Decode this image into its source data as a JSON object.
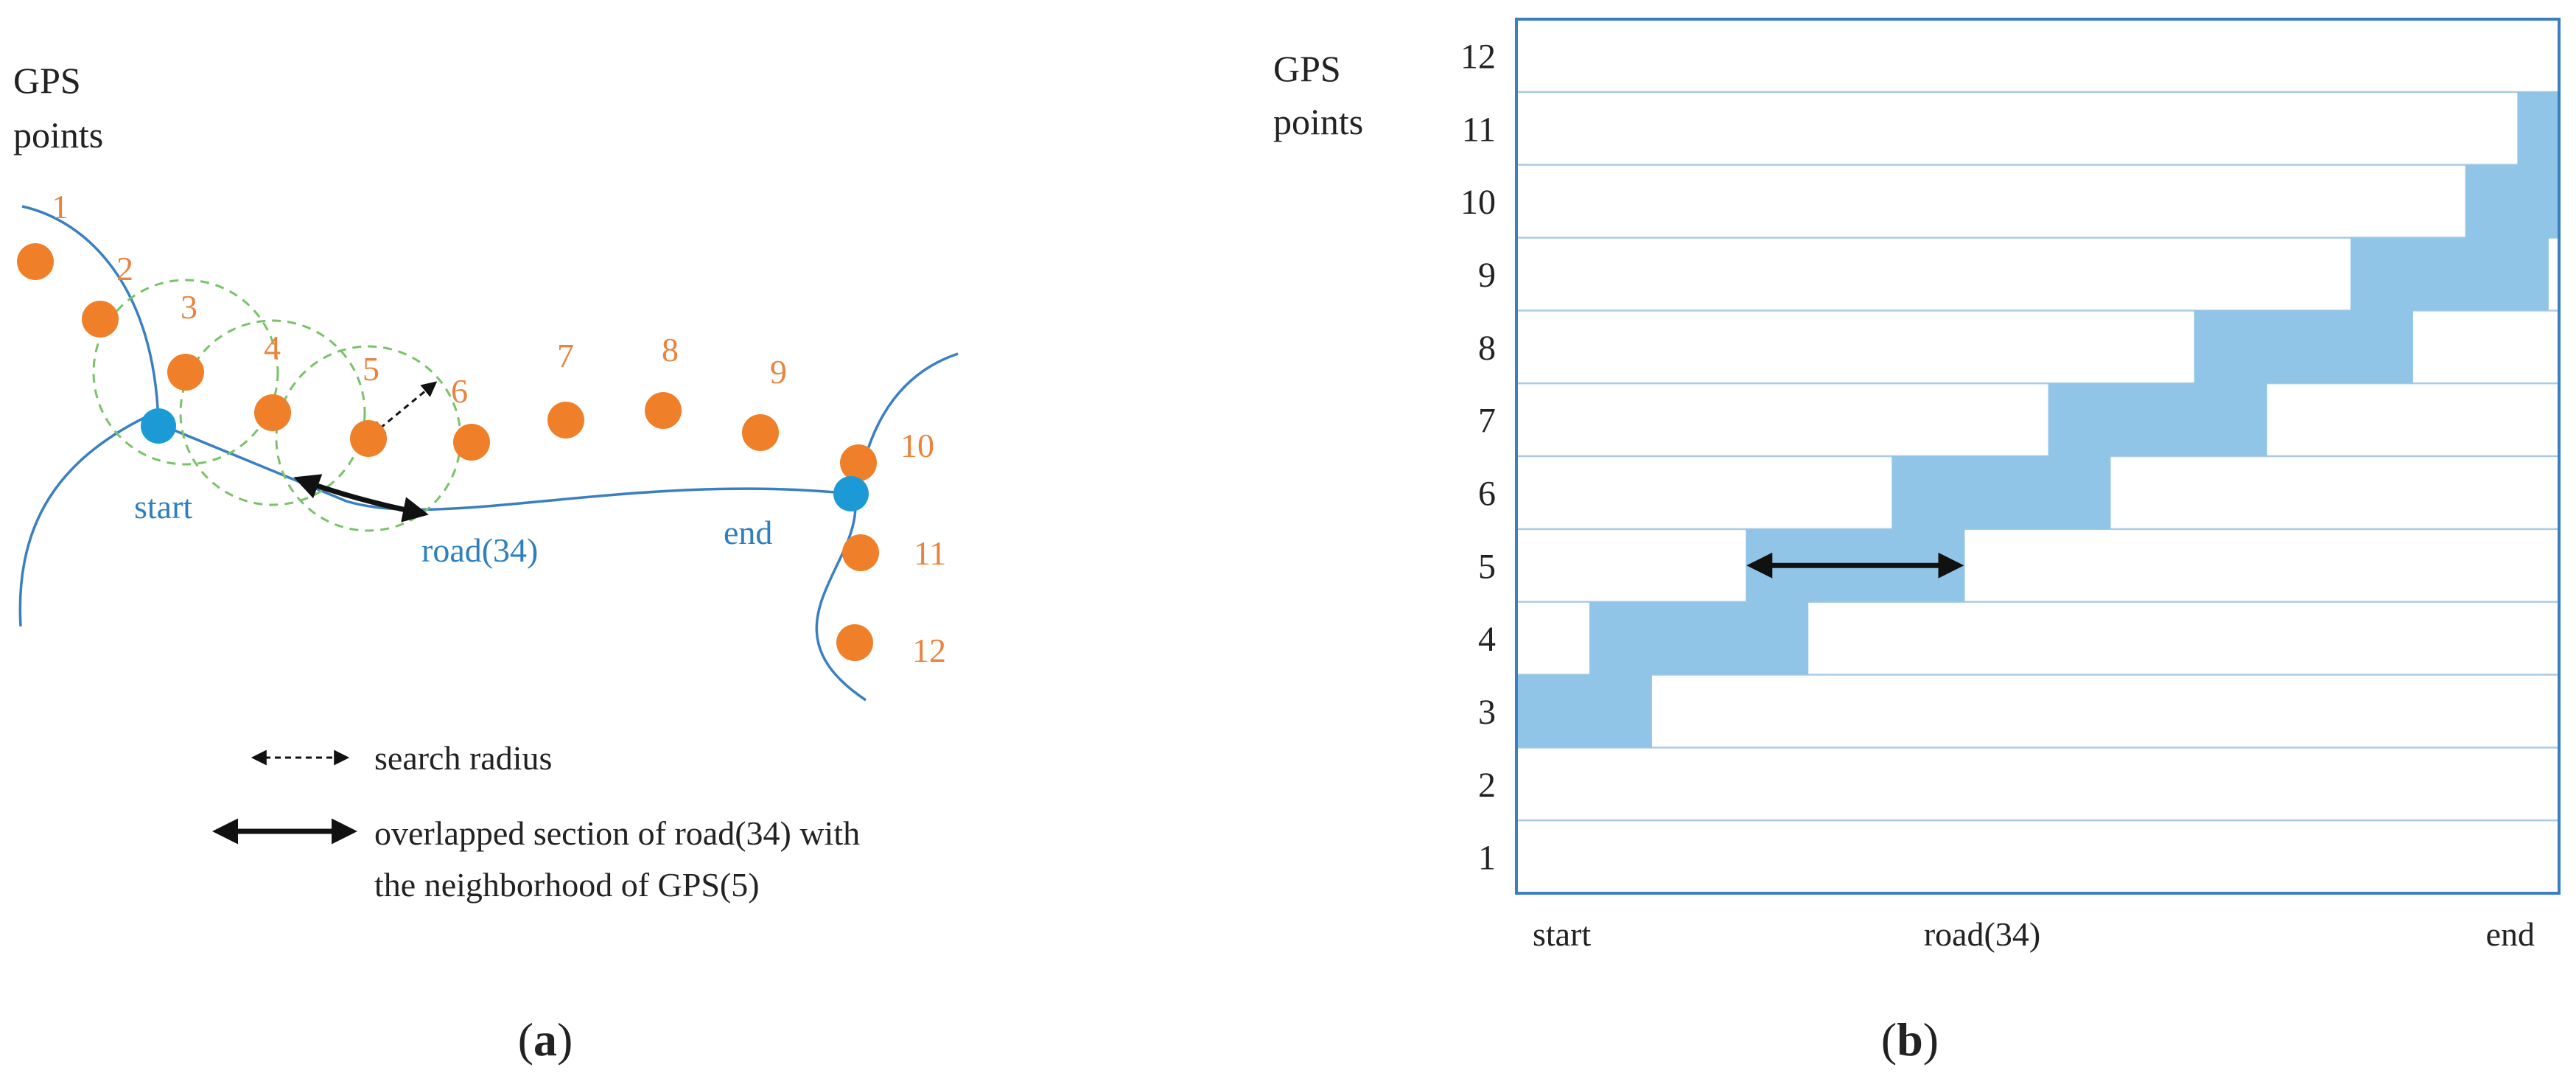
{
  "colors": {
    "road": "#3a7fc1",
    "gps_point": "#f07f2a",
    "road_endpoint": "#1b9ad6",
    "label_orange": "#e8843e",
    "label_blue": "#2e7fbf",
    "search_circle": "#7ac26a",
    "overlap_fill": "#90c5e8",
    "grid_border": "#3a7fc1",
    "grid_line": "#aacbe3",
    "text": "#222222"
  },
  "panel_a": {
    "caption_open": "(",
    "caption_letter": "a",
    "caption_close": ")",
    "y_title_line1": "GPS",
    "y_title_line2": "points",
    "point_labels": [
      "1",
      "2",
      "3",
      "4",
      "5",
      "6",
      "7",
      "8",
      "9",
      "10",
      "11",
      "12"
    ],
    "start_label": "start",
    "end_label": "end",
    "road_label": "road(34)",
    "legend": {
      "search_radius": "search radius",
      "overlap_line1": "overlapped section of road(34) with",
      "overlap_line2": "the neighborhood  of GPS(5)"
    }
  },
  "panel_b": {
    "caption_open": "(",
    "caption_letter": "b",
    "caption_close": ")",
    "y_title_line1": "GPS",
    "y_title_line2": "points",
    "row_labels": [
      "1",
      "2",
      "3",
      "4",
      "5",
      "6",
      "7",
      "8",
      "9",
      "10",
      "11",
      "12"
    ],
    "x_start_label": "start",
    "x_mid_label": "road(34)",
    "x_end_label": "end"
  },
  "chart_data": {
    "type": "heatmap",
    "title": "",
    "xlabel": "road(34)",
    "ylabel": "GPS points",
    "x_range": [
      "start",
      "end"
    ],
    "rows": [
      "1",
      "2",
      "3",
      "4",
      "5",
      "6",
      "7",
      "8",
      "9",
      "10",
      "11",
      "12"
    ],
    "covered_sections": [
      {
        "gps": "3",
        "from": 0.0,
        "to": 0.13
      },
      {
        "gps": "4",
        "from": 0.07,
        "to": 0.28
      },
      {
        "gps": "5",
        "from": 0.22,
        "to": 0.43
      },
      {
        "gps": "6",
        "from": 0.36,
        "to": 0.57
      },
      {
        "gps": "7",
        "from": 0.51,
        "to": 0.72
      },
      {
        "gps": "8",
        "from": 0.65,
        "to": 0.86
      },
      {
        "gps": "9",
        "from": 0.8,
        "to": 0.99
      },
      {
        "gps": "10",
        "from": 0.91,
        "to": 1.0
      },
      {
        "gps": "11",
        "from": 0.96,
        "to": 1.0
      }
    ],
    "highlighted_row": "5"
  }
}
